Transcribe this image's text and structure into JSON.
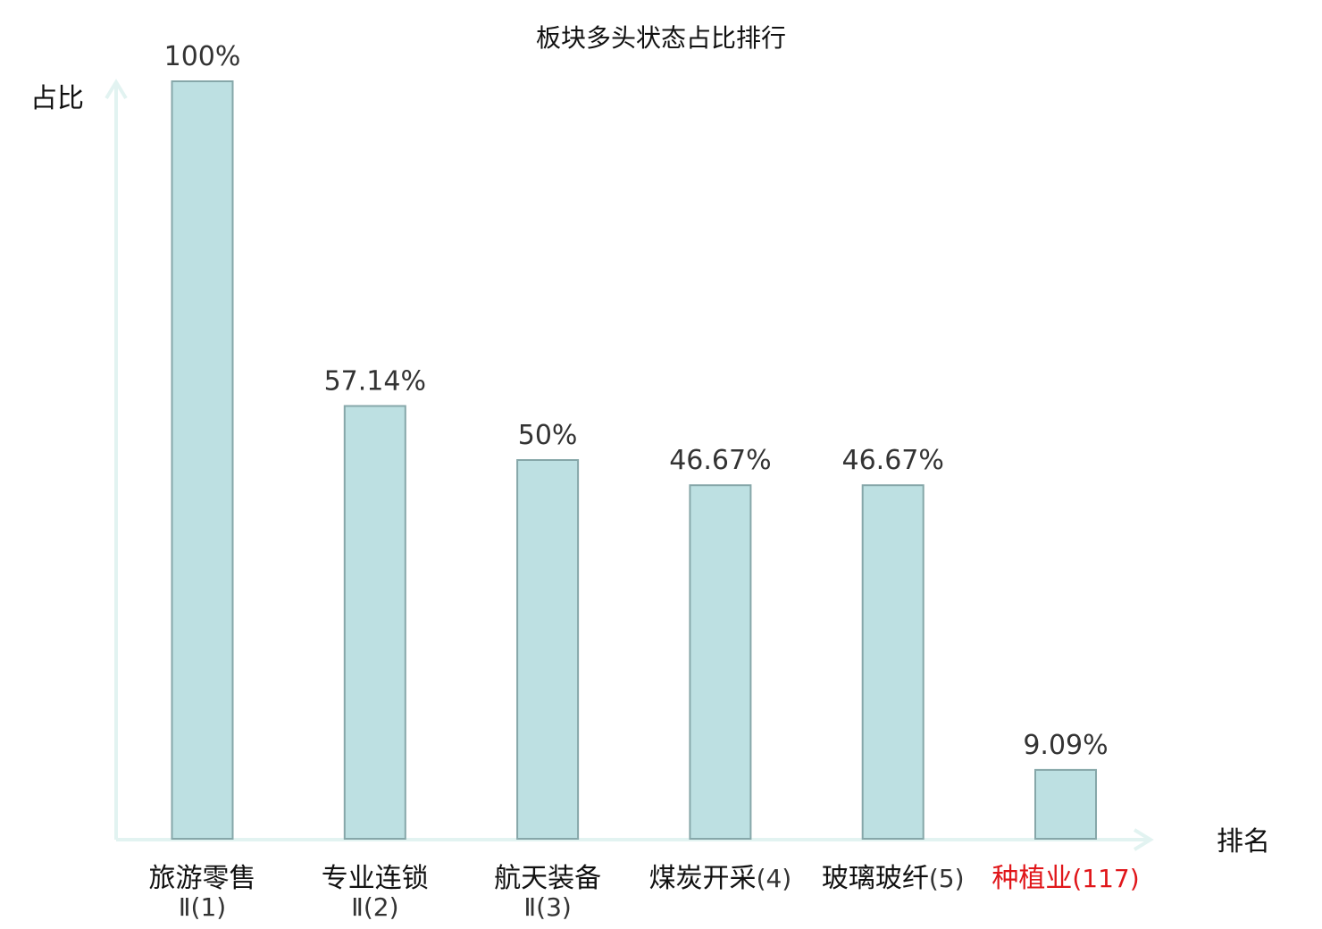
{
  "chart_data": {
    "type": "bar",
    "title": "板块多头状态占比排行",
    "ylabel": "占比",
    "xlabel": "排名",
    "ylim": [
      0,
      100
    ],
    "grid": false,
    "categories": [
      {
        "name": "旅游零售",
        "rank": "Ⅱ(1)",
        "value": 100,
        "label": "100%",
        "highlight": false
      },
      {
        "name": "专业连锁",
        "rank": "Ⅱ(2)",
        "value": 57.14,
        "label": "57.14%",
        "highlight": false
      },
      {
        "name": "航天装备",
        "rank": "Ⅱ(3)",
        "value": 50,
        "label": "50%",
        "highlight": false
      },
      {
        "name": "煤炭开采",
        "rank": "(4)",
        "value": 46.67,
        "label": "46.67%",
        "highlight": false
      },
      {
        "name": "玻璃玻纤",
        "rank": "(5)",
        "value": 46.67,
        "label": "46.67%",
        "highlight": false
      },
      {
        "name": "种植业",
        "rank": "(117)",
        "value": 9.09,
        "label": "9.09%",
        "highlight": true
      }
    ],
    "colors": {
      "bar_fill": "#bde0e2",
      "bar_stroke": "#86a7a9",
      "axis": "#e2f3f1",
      "highlight_text": "#e0161a"
    }
  }
}
